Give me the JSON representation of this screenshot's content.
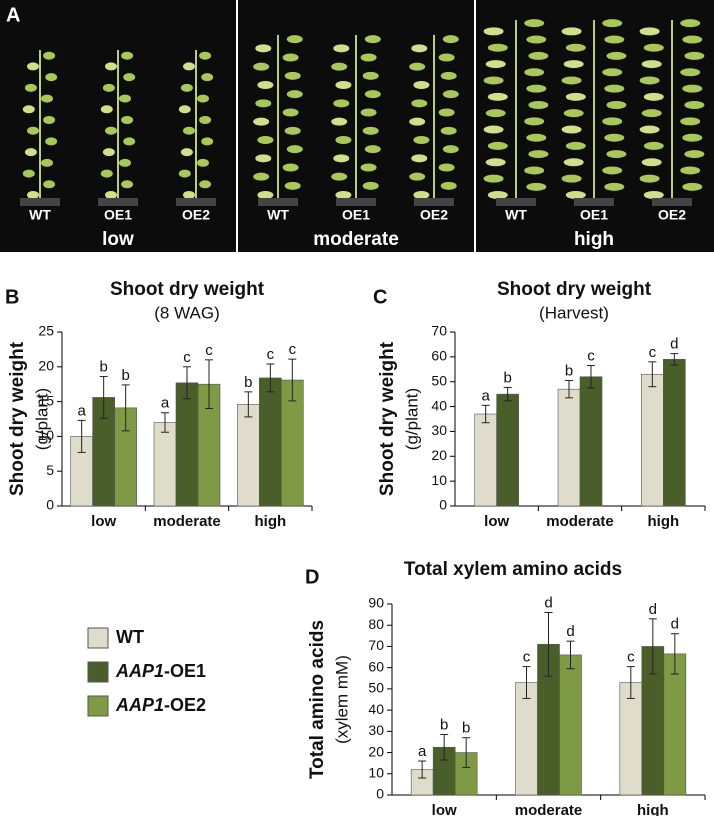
{
  "photo_panel": {
    "label": "A",
    "groups": [
      {
        "name": "low",
        "plants": [
          "WT",
          "OE1",
          "OE2"
        ]
      },
      {
        "name": "moderate",
        "plants": [
          "WT",
          "OE1",
          "OE2"
        ]
      },
      {
        "name": "high",
        "plants": [
          "WT",
          "OE1",
          "OE2"
        ]
      }
    ]
  },
  "chart_data": [
    {
      "type": "bar",
      "panel": "B",
      "title": "Shoot dry weight",
      "subtitle": "(8 WAG)",
      "y_label": "Shoot dry weight",
      "y_unit": "(g/plant)",
      "categories": [
        "low",
        "moderate",
        "high"
      ],
      "ylim": [
        0,
        25
      ],
      "yticks": [
        0,
        5,
        10,
        15,
        20,
        25
      ],
      "series": [
        {
          "name": "WT",
          "color": "#e0dccb",
          "values": [
            10,
            12,
            14.6
          ],
          "errors": [
            2.3,
            1.4,
            1.8
          ],
          "significance": [
            "a",
            "a",
            "b"
          ]
        },
        {
          "name": "AAP1-OE1",
          "color": "#4a5e2a",
          "values": [
            15.6,
            17.7,
            18.4
          ],
          "errors": [
            3,
            2.3,
            2
          ],
          "significance": [
            "b",
            "c",
            "c"
          ]
        },
        {
          "name": "AAP1-OE2",
          "color": "#7f9a44",
          "values": [
            14.1,
            17.5,
            18.1
          ],
          "errors": [
            3.3,
            3.5,
            3
          ],
          "significance": [
            "b",
            "c",
            "c"
          ]
        }
      ]
    },
    {
      "type": "bar",
      "panel": "C",
      "title": "Shoot dry weight",
      "subtitle": "(Harvest)",
      "y_label": "Shoot dry weight",
      "y_unit": "(g/plant)",
      "categories": [
        "low",
        "moderate",
        "high"
      ],
      "ylim": [
        0,
        70
      ],
      "yticks": [
        0,
        10,
        20,
        30,
        40,
        50,
        60,
        70
      ],
      "series": [
        {
          "name": "WT",
          "color": "#e0dccb",
          "values": [
            37,
            47,
            53
          ],
          "errors": [
            3.5,
            3.5,
            5
          ],
          "significance": [
            "a",
            "b",
            "c"
          ]
        },
        {
          "name": "AAP1-OE1",
          "color": "#4a5e2a",
          "values": [
            45,
            52,
            59
          ],
          "errors": [
            2.7,
            4.5,
            2.3
          ],
          "significance": [
            "b",
            "c",
            "d"
          ]
        }
      ]
    },
    {
      "type": "bar",
      "panel": "D",
      "title": "Total xylem amino acids",
      "y_label": "Total amino acids",
      "y_unit": "(xylem mM)",
      "categories": [
        "low",
        "moderate",
        "high"
      ],
      "ylim": [
        0,
        90
      ],
      "yticks": [
        0,
        10,
        20,
        30,
        40,
        50,
        60,
        70,
        80,
        90
      ],
      "series": [
        {
          "name": "WT",
          "color": "#e0dccb",
          "values": [
            12,
            53,
            53
          ],
          "errors": [
            4,
            7.5,
            7.5
          ],
          "significance": [
            "a",
            "c",
            "c"
          ]
        },
        {
          "name": "AAP1-OE1",
          "color": "#4a5e2a",
          "values": [
            22.5,
            71,
            70
          ],
          "errors": [
            6,
            15,
            13
          ],
          "significance": [
            "b",
            "d",
            "d"
          ]
        },
        {
          "name": "AAP1-OE2",
          "color": "#7f9a44",
          "values": [
            20,
            66,
            66.5
          ],
          "errors": [
            7,
            6.5,
            9.5
          ],
          "significance": [
            "b",
            "d",
            "d"
          ]
        }
      ]
    }
  ]
}
